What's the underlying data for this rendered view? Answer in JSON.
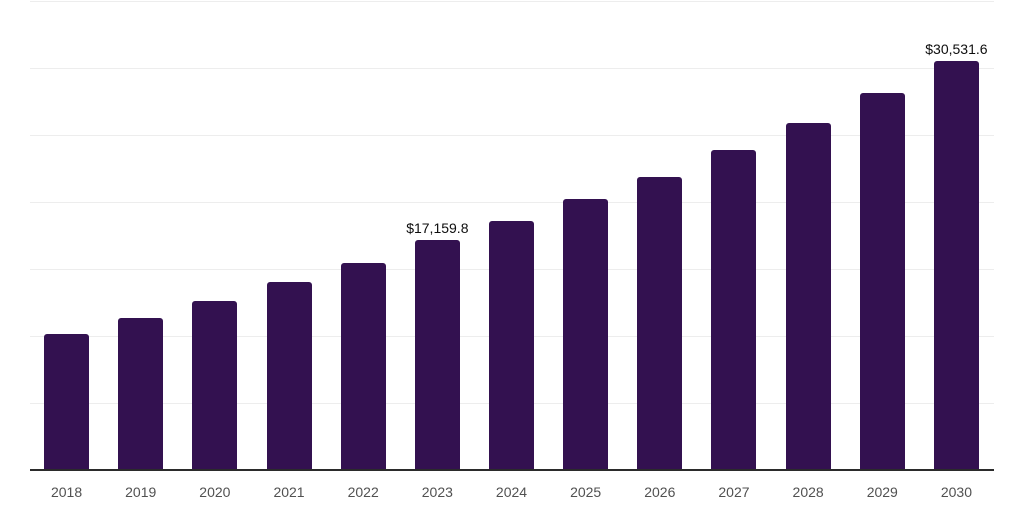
{
  "chart_data": {
    "type": "bar",
    "title": "",
    "xlabel": "",
    "ylabel": "",
    "categories": [
      "2018",
      "2019",
      "2020",
      "2021",
      "2022",
      "2023",
      "2024",
      "2025",
      "2026",
      "2027",
      "2028",
      "2029",
      "2030"
    ],
    "values": [
      10150,
      11340,
      12610,
      14030,
      15450,
      17159.8,
      18580,
      20220,
      21870,
      23880,
      25900,
      28140,
      30531.6
    ],
    "value_labels": [
      "",
      "",
      "",
      "",
      "",
      "$17,159.8",
      "",
      "",
      "",
      "",
      "",
      "",
      "$30,531.6"
    ],
    "ylim": [
      0,
      35000
    ],
    "gridline_step": 5000,
    "grid": "horizontal",
    "legend": "none",
    "y_axis_tick_labels_visible": false,
    "colors": {
      "bar": "#331150",
      "gridline": "#ededed",
      "axis_line": "#2b2b2b",
      "tick_label": "#515151",
      "value_label": "#0d0d0d",
      "background": "#ffffff"
    }
  }
}
